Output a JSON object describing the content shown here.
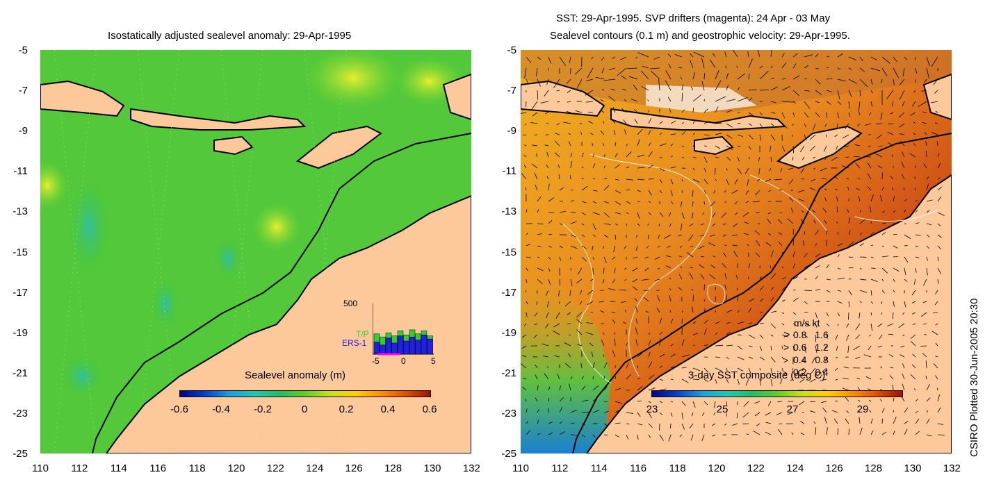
{
  "left_panel": {
    "title": "Isostatically adjusted sealevel anomaly: 29-Apr-1995",
    "colorbar": {
      "title": "Sealevel anomaly (m)",
      "ticks": [
        "-0.6",
        "-0.4",
        "-0.2",
        "0",
        "0.2",
        "0.4",
        "0.6"
      ],
      "colors": [
        "#00008b",
        "#0044cc",
        "#1aa0e0",
        "#20c8b0",
        "#20c060",
        "#60d020",
        "#c8e020",
        "#ffd000",
        "#ff9000",
        "#e05000",
        "#a01000"
      ]
    },
    "inset": {
      "ymax_label": "500",
      "series": [
        "T/P",
        "ERS-1"
      ],
      "series_colors": [
        "#33cc33",
        "#2020e0"
      ],
      "x_ticks": [
        "-5",
        "0",
        "5"
      ],
      "green_values": [
        200,
        170,
        210,
        180,
        230,
        190,
        240,
        200,
        230,
        180
      ],
      "blue_values": [
        120,
        90,
        160,
        110,
        180,
        130,
        170,
        140,
        190,
        150
      ]
    }
  },
  "right_panel": {
    "title_line1": "SST: 29-Apr-1995. SVP drifters (magenta): 24 Apr - 03 May",
    "title_line2": "Sealevel contours (0.1 m) and geostrophic velocity: 29-Apr-1995.",
    "colorbar": {
      "title": "3-day SST composite (deg C)",
      "ticks": [
        "23",
        "25",
        "27",
        "29"
      ],
      "colors": [
        "#00008b",
        "#0044cc",
        "#1aa0e0",
        "#20c8b0",
        "#20c060",
        "#60d020",
        "#c8e020",
        "#ffd000",
        "#ff9000",
        "#e05000",
        "#a01000"
      ]
    },
    "velocity_legend": {
      "header": "m/s  kt",
      "rows": [
        {
          "ms": "0.8",
          "kt": "1.6"
        },
        {
          "ms": "0.6",
          "kt": "1.2"
        },
        {
          "ms": "0.4",
          "kt": "0.8"
        },
        {
          "ms": "0.2",
          "kt": "0.4"
        }
      ]
    }
  },
  "axes": {
    "y_ticks": [
      "-5",
      "-7",
      "-9",
      "-11",
      "-13",
      "-15",
      "-17",
      "-19",
      "-21",
      "-23",
      "-25"
    ],
    "x_ticks": [
      "110",
      "112",
      "114",
      "116",
      "118",
      "120",
      "122",
      "124",
      "126",
      "128",
      "130",
      "132"
    ],
    "lon_range": [
      110,
      132
    ],
    "lat_range": [
      -25,
      -5
    ]
  },
  "credit": "CSIRO Plotted 30-Jun-2005 20:30",
  "colors": {
    "land": "#fdc89a",
    "ocean_left": "#48c838",
    "ocean_right": "#e08020"
  }
}
